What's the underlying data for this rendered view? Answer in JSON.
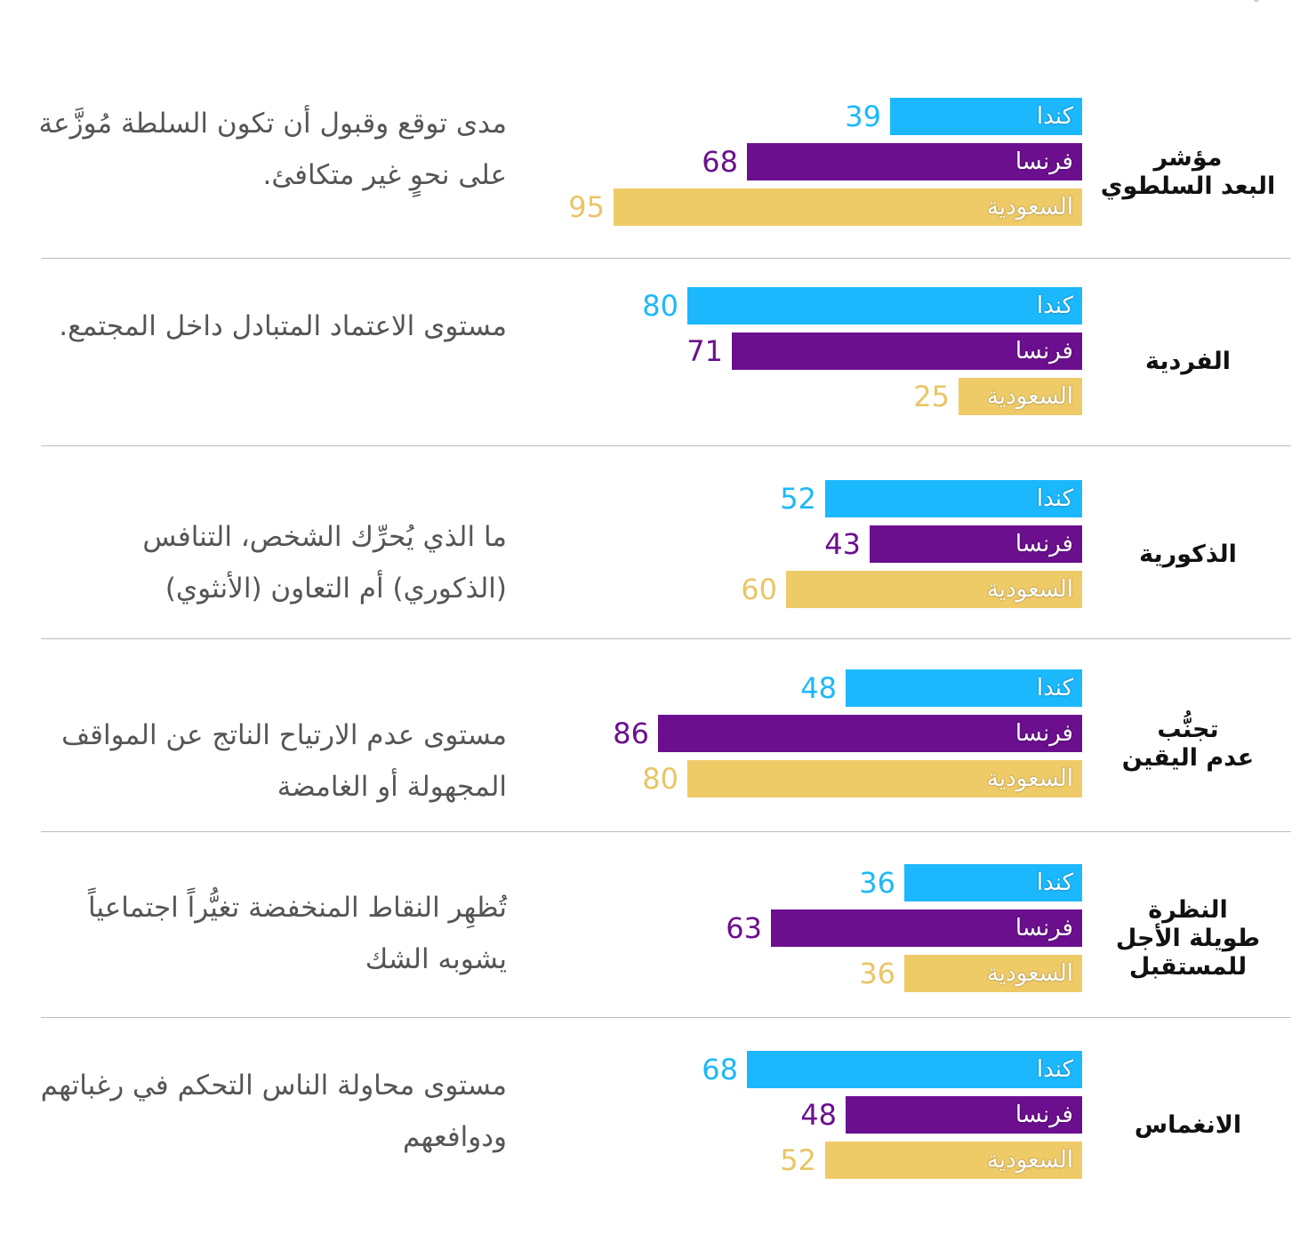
{
  "colors": {
    "canada": "#1cb8fd",
    "france": "#6b0f8f",
    "saudi": "#efcb68",
    "saudi_value": "#e9c565",
    "divider": "#bdbdbd"
  },
  "chart_data": {
    "type": "bar",
    "orientation": "horizontal",
    "direction": "right-to-left",
    "xlim": [
      0,
      100
    ],
    "series_labels": [
      "كندا",
      "فرنسا",
      "السعودية"
    ],
    "rows": [
      {
        "title": "مؤشر\nالبعد السلطوي",
        "description": "مدى توقع وقبول أن تكون السلطة مُوزَّعة على نحوٍ غير متكافئ.",
        "values": [
          39,
          68,
          95
        ]
      },
      {
        "title": "الفردية",
        "description": "مستوى الاعتماد المتبادل داخل المجتمع.",
        "values": [
          80,
          71,
          25
        ]
      },
      {
        "title": "الذكورية",
        "description": "ما الذي يُحرِّك الشخص، التنافس (الذكوري) أم التعاون (الأنثوي)",
        "values": [
          52,
          43,
          60
        ]
      },
      {
        "title": "تجنُّب\nعدم اليقين",
        "description": "مستوى عدم الارتياح الناتج عن المواقف المجهولة أو الغامضة",
        "values": [
          48,
          86,
          80
        ]
      },
      {
        "title": "النظرة\nطويلة الأجل\nللمستقبل",
        "description": "تُظهِر النقاط المنخفضة تغيُّراً اجتماعياً يشوبه الشك",
        "values": [
          36,
          63,
          36
        ]
      },
      {
        "title": "الانغماس",
        "description": "مستوى محاولة الناس التحكم في رغباتهم ودوافعهم",
        "values": [
          68,
          48,
          52
        ]
      }
    ]
  }
}
